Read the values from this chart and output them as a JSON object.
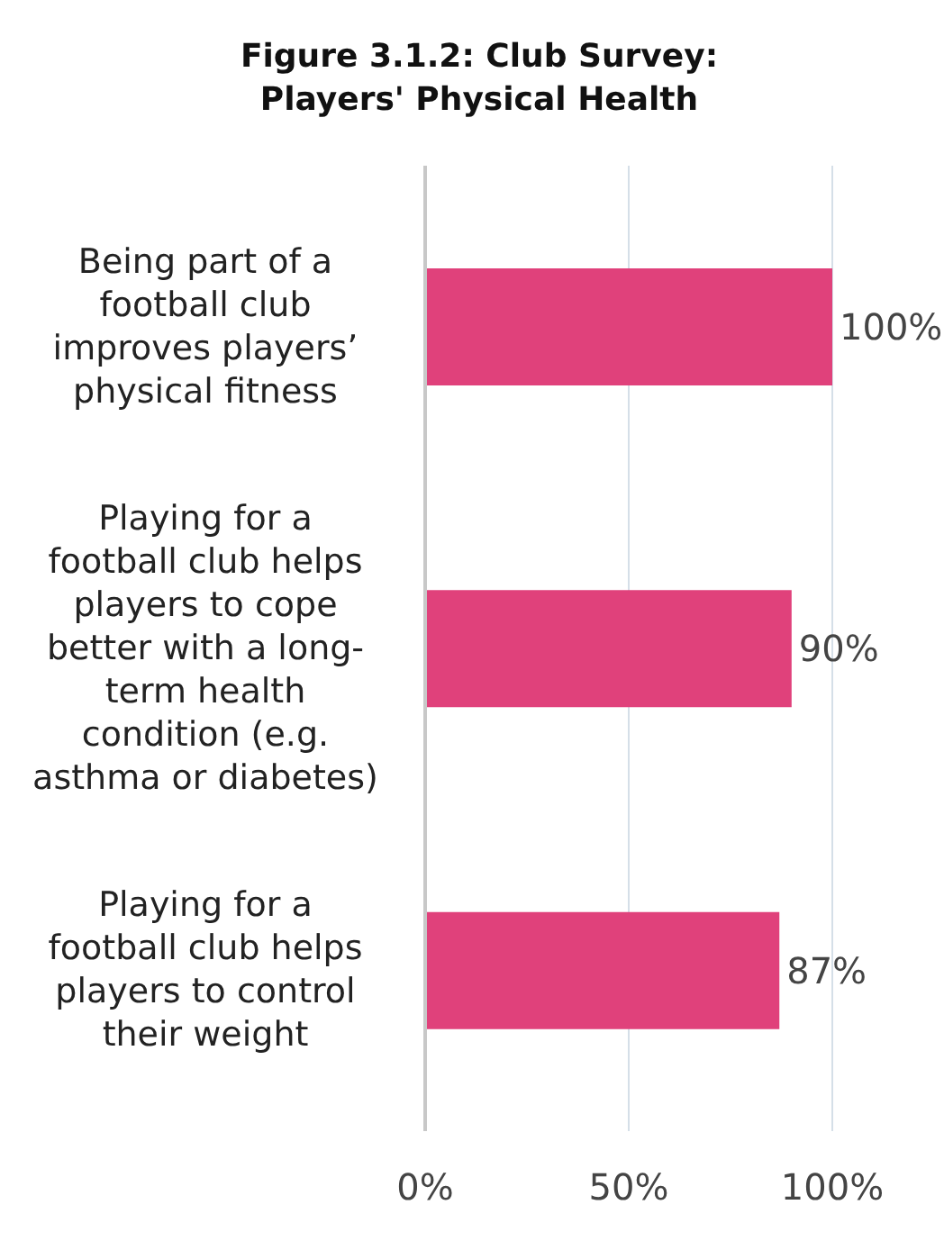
{
  "chart_data": {
    "type": "bar",
    "orientation": "horizontal",
    "title": "Figure 3.1.2: Club Survey: Players' Physical Health",
    "categories": [
      "Being part of a football club improves players’ physical fitness",
      "Playing for a football club helps players to cope better with a long-term health condition (e.g. asthma or diabetes)",
      "Playing for a football club helps players to control their weight"
    ],
    "values": [
      100,
      90,
      87
    ],
    "color": "#e0417b",
    "value_labels": [
      "100%",
      "90%",
      "87%"
    ],
    "xlim": [
      0,
      100
    ],
    "xticks": [
      {
        "value": 0,
        "label": "0%"
      },
      {
        "value": 50,
        "label": "50%"
      },
      {
        "value": 100,
        "label": "100%"
      }
    ],
    "grid": "x"
  }
}
